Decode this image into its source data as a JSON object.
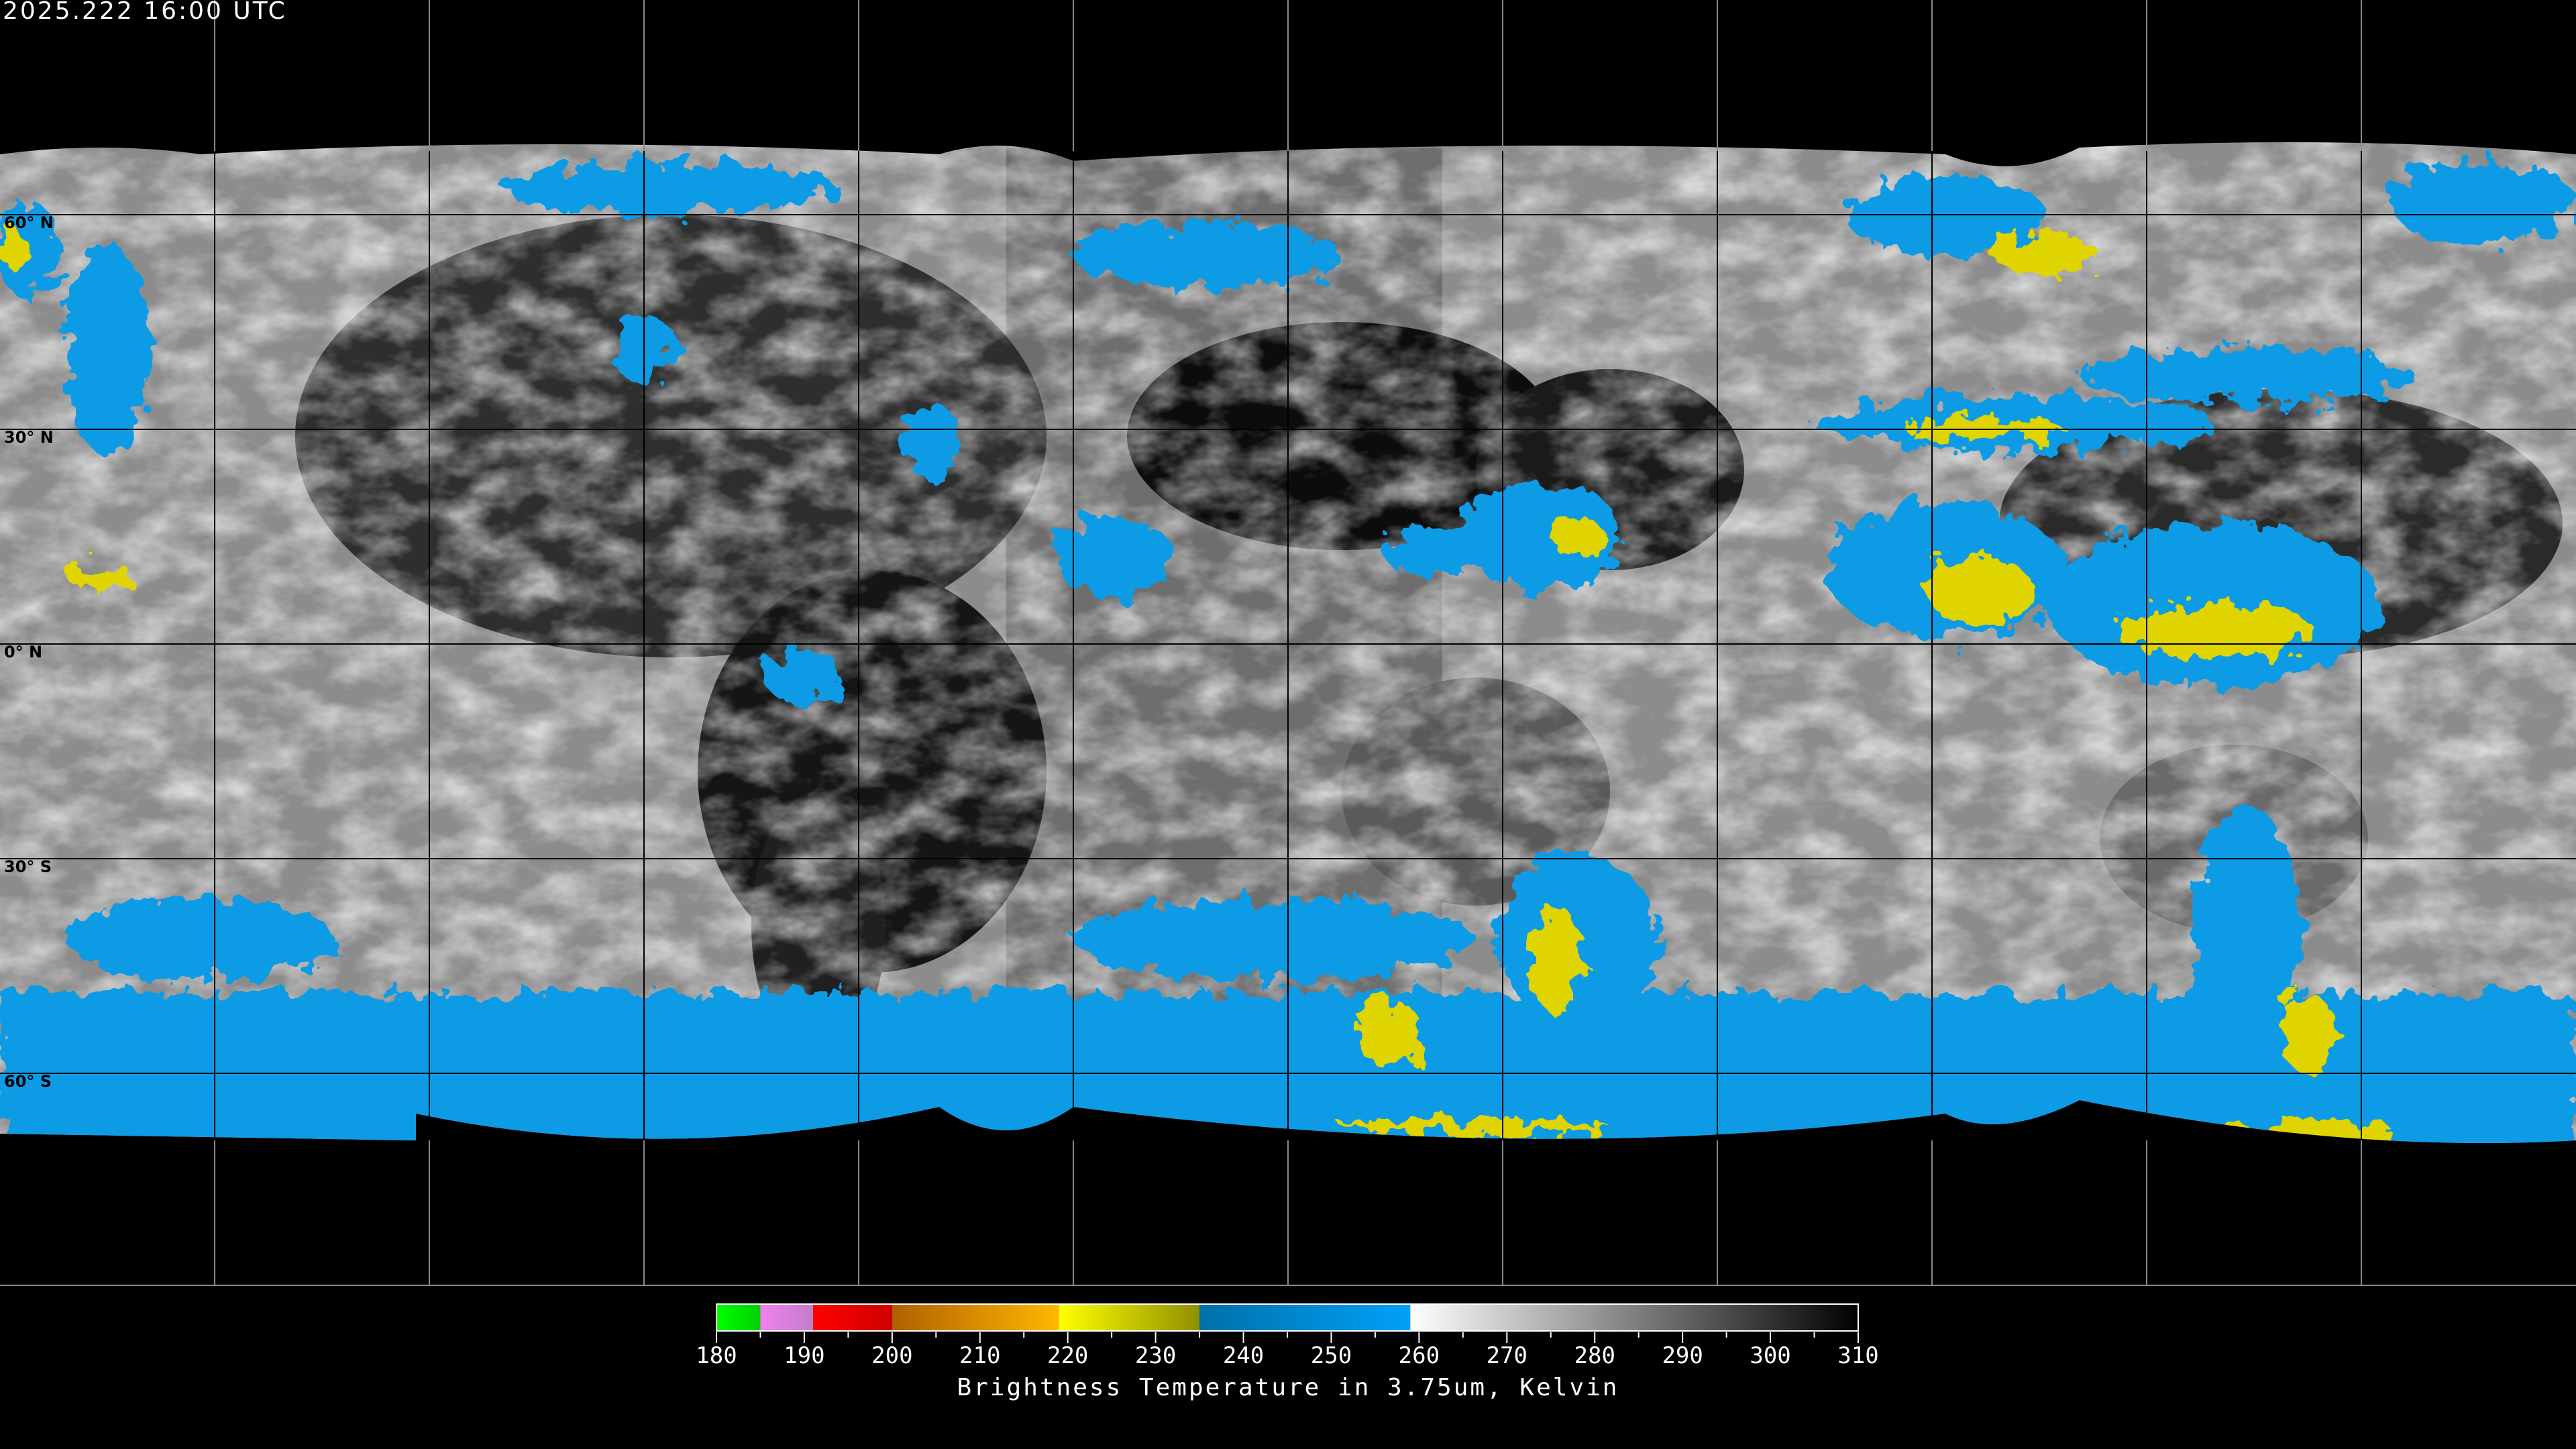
{
  "header": {
    "timestamp": "2025.222 16:00 UTC"
  },
  "map": {
    "projection": "equirectangular",
    "latitude_labels": [
      "60° N",
      "30° N",
      "0° N",
      "30° S",
      "60° S"
    ],
    "grid_spacing_degrees": 30,
    "colors": {
      "cold_cloud": "#0a9be6",
      "very_cold": "#e6d800",
      "background": "#000000",
      "coastline": "#000000"
    }
  },
  "colorbar": {
    "title": "Brightness Temperature in 3.75um, Kelvin",
    "range": [
      180,
      310
    ],
    "tick_labels": [
      "180",
      "190",
      "200",
      "210",
      "220",
      "230",
      "240",
      "250",
      "260",
      "270",
      "280",
      "290",
      "300",
      "310"
    ],
    "segments": [
      {
        "from": 180,
        "to": 185,
        "colors": [
          "#00ff00",
          "#00d000"
        ]
      },
      {
        "from": 185,
        "to": 191,
        "colors": [
          "#f080f0",
          "#c080c8"
        ]
      },
      {
        "from": 191,
        "to": 200,
        "colors": [
          "#ff0000",
          "#d00000"
        ]
      },
      {
        "from": 200,
        "to": 219,
        "colors": [
          "#b06000",
          "#ffb800"
        ]
      },
      {
        "from": 219,
        "to": 235,
        "colors": [
          "#ffff00",
          "#909000"
        ]
      },
      {
        "from": 235,
        "to": 259,
        "colors": [
          "#0070a8",
          "#00a0f8"
        ]
      },
      {
        "from": 259,
        "to": 310,
        "colors": [
          "#ffffff",
          "#000000"
        ]
      }
    ]
  }
}
